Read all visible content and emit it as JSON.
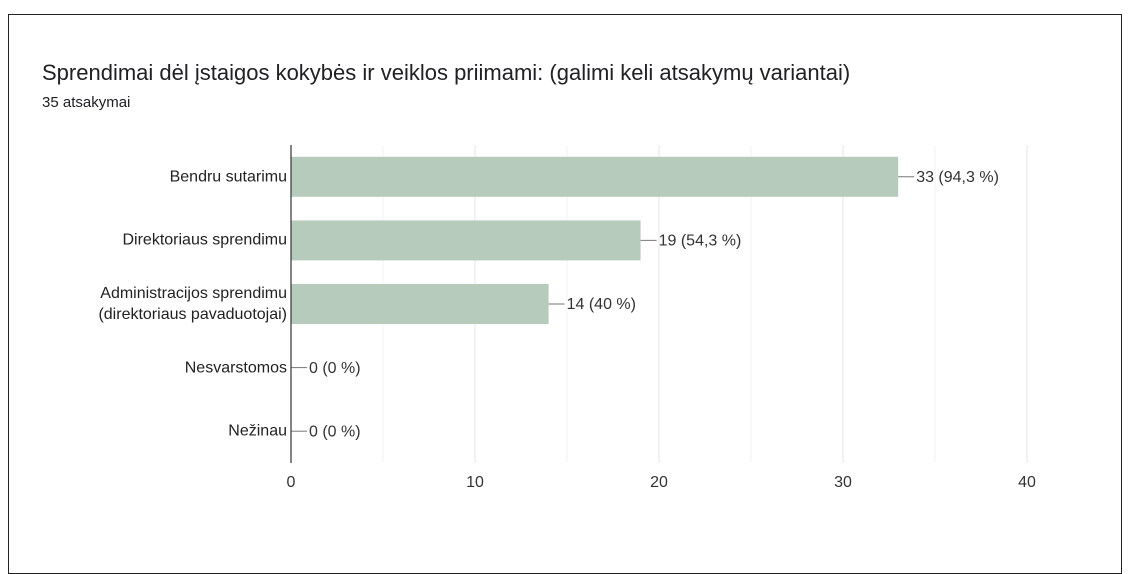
{
  "chart_data": {
    "type": "bar",
    "orientation": "horizontal",
    "title": "Sprendimai dėl įstaigos kokybės ir veiklos priimami:  (galimi keli atsakymų variantai)",
    "subtitle": "35 atsakymai",
    "categories": [
      "Bendru sutarimu",
      "Direktoriaus sprendimu",
      "Administracijos sprendimu (direktoriaus pavaduotojai)",
      "Nesvarstomos",
      "Nežinau"
    ],
    "values": [
      33,
      19,
      14,
      0,
      0
    ],
    "value_labels": [
      "33 (94,3 %)",
      "19 (54,3 %)",
      "14 (40 %)",
      "0 (0 %)",
      "0 (0 %)"
    ],
    "color": "#b7cbbd",
    "xlim": [
      0,
      40
    ],
    "xticks": [
      0,
      10,
      20,
      30,
      40
    ],
    "minor_xticks": [
      5,
      15,
      25,
      35
    ],
    "grid": true
  }
}
